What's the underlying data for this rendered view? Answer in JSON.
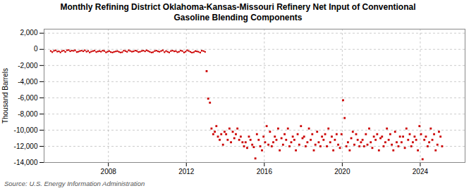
{
  "chart_data": {
    "type": "line",
    "title": "Monthly Refining District Oklahoma-Kansas-Missouri Refinery Net Input of Conventional\nGasoline Blending Components",
    "ylabel": "Thousand Barrels",
    "source": "Source: U.S. Energy Information Administration",
    "xlim": [
      2004.7,
      2026.3
    ],
    "xticks": [
      2008,
      2012,
      2016,
      2020,
      2024
    ],
    "ylim": [
      -14000,
      2500
    ],
    "yticks": [
      {
        "value": 2000,
        "label": "2,000"
      },
      0,
      {
        "value": -2000,
        "label": "-2,000"
      },
      {
        "value": -4000,
        "label": "-4,000"
      },
      {
        "value": -6000,
        "label": "-6,000"
      },
      {
        "value": -8000,
        "label": "-8,000"
      },
      {
        "value": -10000,
        "label": "-10,000"
      },
      {
        "value": -12000,
        "label": "-12,000"
      },
      {
        "value": -14000,
        "label": "-14,000"
      }
    ],
    "grid": true,
    "series": [
      {
        "type": "line",
        "color": "#cc0000",
        "marker": "square",
        "x": [
          2005.04,
          2005.12,
          2005.21,
          2005.29,
          2005.38,
          2005.46,
          2005.54,
          2005.62,
          2005.71,
          2005.79,
          2005.88,
          2005.96,
          2006.04,
          2006.12,
          2006.21,
          2006.29,
          2006.38,
          2006.46,
          2006.54,
          2006.62,
          2006.71,
          2006.79,
          2006.88,
          2006.96,
          2007.04,
          2007.12,
          2007.21,
          2007.29,
          2007.38,
          2007.46,
          2007.54,
          2007.62,
          2007.71,
          2007.79,
          2007.88,
          2007.96,
          2008.04,
          2008.12,
          2008.21,
          2008.29,
          2008.38,
          2008.46,
          2008.54,
          2008.62,
          2008.71,
          2008.79,
          2008.88,
          2008.96,
          2009.04,
          2009.12,
          2009.21,
          2009.29,
          2009.38,
          2009.46,
          2009.54,
          2009.62,
          2009.71,
          2009.79,
          2009.88,
          2009.96,
          2010.04,
          2010.12,
          2010.21,
          2010.29,
          2010.38,
          2010.46,
          2010.54,
          2010.62,
          2010.71,
          2010.79,
          2010.88,
          2010.96,
          2011.04,
          2011.12,
          2011.21,
          2011.29,
          2011.38,
          2011.46,
          2011.54,
          2011.62,
          2011.71,
          2011.79,
          2011.88,
          2011.96,
          2012.04,
          2012.12,
          2012.21,
          2012.29,
          2012.38,
          2012.46,
          2012.54,
          2012.62,
          2012.71,
          2012.79,
          2012.88,
          2012.96
        ],
        "values": [
          -200,
          -350,
          -180,
          -120,
          -280,
          -240,
          -380,
          -210,
          -160,
          -330,
          -110,
          -90,
          -240,
          -160,
          -190,
          -110,
          -340,
          -290,
          -210,
          -160,
          -240,
          -110,
          -290,
          -190,
          -390,
          -280,
          -210,
          -160,
          -340,
          -260,
          -210,
          -290,
          -160,
          -200,
          -380,
          -290,
          -210,
          -340,
          -390,
          -310,
          -260,
          -210,
          -310,
          -390,
          -360,
          -160,
          -210,
          -310,
          -110,
          -200,
          -290,
          -250,
          -160,
          -200,
          -340,
          -300,
          -200,
          -160,
          -250,
          -120,
          -200,
          -300,
          -390,
          -360,
          -200,
          -160,
          -250,
          -300,
          -200,
          -110,
          -360,
          -200,
          -300,
          -390,
          -200,
          -160,
          -250,
          -210,
          -360,
          -300,
          -160,
          -200,
          -390,
          -290,
          -110,
          -200,
          -310,
          -410,
          -360,
          -210,
          -250,
          -300,
          -410,
          -160,
          -210,
          -310
        ]
      },
      {
        "type": "scatter",
        "color": "#cc0000",
        "marker": "square",
        "x": [
          2013.04,
          2013.12,
          2013.21
        ],
        "values": [
          -2700,
          -6100,
          -6600
        ]
      },
      {
        "type": "scatter",
        "color": "#cc0000",
        "marker": "square",
        "x": [
          2013.29,
          2013.38,
          2013.46,
          2013.54,
          2013.62,
          2013.71,
          2013.79,
          2013.88,
          2013.96,
          2014.04,
          2014.12,
          2014.21,
          2014.29,
          2014.38,
          2014.46,
          2014.54,
          2014.62,
          2014.71,
          2014.79,
          2014.88,
          2014.96,
          2015.04,
          2015.12,
          2015.21,
          2015.29,
          2015.38,
          2015.46,
          2015.54,
          2015.62,
          2015.71,
          2015.79,
          2015.88,
          2015.96,
          2016.04,
          2016.12,
          2016.21,
          2016.29,
          2016.38,
          2016.46,
          2016.54,
          2016.62,
          2016.71,
          2016.79,
          2016.88,
          2016.96,
          2017.04,
          2017.12,
          2017.21,
          2017.29,
          2017.38,
          2017.46,
          2017.54,
          2017.62,
          2017.71,
          2017.79,
          2017.88,
          2017.96,
          2018.04,
          2018.12,
          2018.21,
          2018.29,
          2018.38,
          2018.46,
          2018.54,
          2018.62,
          2018.71,
          2018.79,
          2018.88,
          2018.96,
          2019.04,
          2019.12,
          2019.21,
          2019.29,
          2019.38,
          2019.46,
          2019.54,
          2019.62,
          2019.71,
          2019.79,
          2019.88,
          2019.96,
          2020.04,
          2020.12,
          2020.21,
          2020.29,
          2020.38,
          2020.46,
          2020.54,
          2020.62,
          2020.71,
          2020.79,
          2020.88,
          2020.96,
          2021.04,
          2021.12,
          2021.21,
          2021.29,
          2021.38,
          2021.46,
          2021.54,
          2021.62,
          2021.71,
          2021.79,
          2021.88,
          2021.96,
          2022.04,
          2022.12,
          2022.21,
          2022.29,
          2022.38,
          2022.46,
          2022.54,
          2022.62,
          2022.71,
          2022.79,
          2022.88,
          2022.96,
          2023.04,
          2023.12,
          2023.21,
          2023.29,
          2023.38,
          2023.46,
          2023.54,
          2023.62,
          2023.71,
          2023.79,
          2023.88,
          2023.96,
          2024.04,
          2024.12,
          2024.21,
          2024.29,
          2024.38,
          2024.46,
          2024.54,
          2024.62,
          2024.71,
          2024.79,
          2024.88,
          2024.96,
          2025.04,
          2025.12
        ],
        "values": [
          -9800,
          -10500,
          -10200,
          -9500,
          -10800,
          -11200,
          -10500,
          -11800,
          -10200,
          -10500,
          -11200,
          -9800,
          -11500,
          -10200,
          -11000,
          -10500,
          -9800,
          -11200,
          -10800,
          -11500,
          -12000,
          -11500,
          -12200,
          -10800,
          -11200,
          -11800,
          -12100,
          -13500,
          -10500,
          -11200,
          -12000,
          -12500,
          -10800,
          -11500,
          -9500,
          -11800,
          -10200,
          -12000,
          -11500,
          -10800,
          -11200,
          -9800,
          -12500,
          -11000,
          -11800,
          -10500,
          -11200,
          -9800,
          -12000,
          -11500,
          -10800,
          -11200,
          -12500,
          -10500,
          -11800,
          -9500,
          -11000,
          -10800,
          -12000,
          -11500,
          -9800,
          -11200,
          -10500,
          -12500,
          -11800,
          -10200,
          -11500,
          -12000,
          -10800,
          -11200,
          -10500,
          -12000,
          -9800,
          -11500,
          -10800,
          -12500,
          -11200,
          -10500,
          -11800,
          -12200,
          -10500,
          -6300,
          -8500,
          -12000,
          -11500,
          -12500,
          -11000,
          -10200,
          -11800,
          -10500,
          -11200,
          -12000,
          -11500,
          -11200,
          -12000,
          -10500,
          -11800,
          -9800,
          -11500,
          -12200,
          -10800,
          -11200,
          -10500,
          -12500,
          -11000,
          -10800,
          -12000,
          -11500,
          -9800,
          -11200,
          -10500,
          -11800,
          -12500,
          -10200,
          -11500,
          -12000,
          -10800,
          -11500,
          -10800,
          -12200,
          -9800,
          -11200,
          -10500,
          -12000,
          -11500,
          -10800,
          -11200,
          -12500,
          -9500,
          -10500,
          -13600,
          -11200,
          -10800,
          -12000,
          -11500,
          -9800,
          -11200,
          -10500,
          -12500,
          -11800,
          -10200,
          -10800,
          -12000
        ]
      }
    ]
  }
}
